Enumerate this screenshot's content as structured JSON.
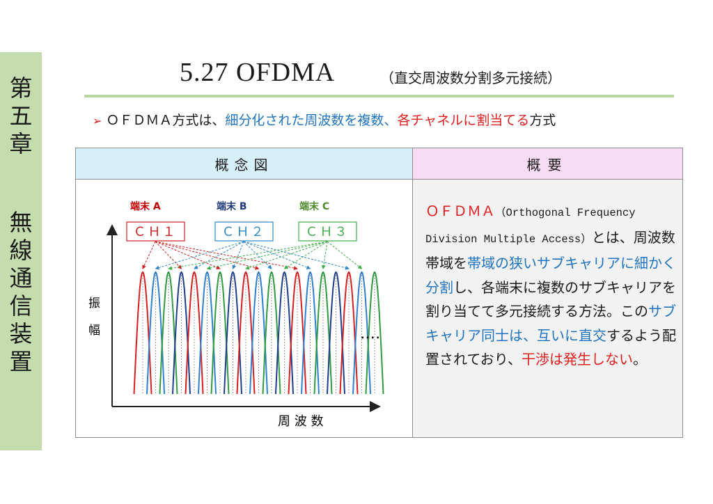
{
  "sidebar": {
    "chapter": [
      "第",
      "五",
      "章"
    ],
    "subject": [
      "無",
      "線",
      "通",
      "信",
      "装",
      "置"
    ]
  },
  "title": {
    "main": "5.27  OFDMA",
    "sub": "（直交周波数分割多元接続）"
  },
  "bullet": {
    "marker": "➢",
    "part1": "ＯＦＤＭＡ方式は、",
    "part2": "細分化された周波数を複数、",
    "part3": "各チャネルに割当てる",
    "part4": "方式"
  },
  "table": {
    "left_header": "概念図",
    "right_header": "概要"
  },
  "diagram": {
    "terminals": [
      {
        "label": "端末 A",
        "color": "#c00000"
      },
      {
        "label": "端末 B",
        "color": "#1f3b7a"
      },
      {
        "label": "端末 C",
        "color": "#4e8a2e"
      }
    ],
    "channels": [
      {
        "label": "ＣＨ１",
        "color": "#d02020"
      },
      {
        "label": "ＣＨ２",
        "color": "#2f86c8"
      },
      {
        "label": "ＣＨ３",
        "color": "#3fae4a"
      }
    ],
    "ylabel": [
      "振",
      "幅"
    ],
    "xlabel": "周 波 数",
    "ellipsis": "‥‥",
    "subcarrier_colors": [
      "#d42020",
      "#2f7fd0",
      "#2f9a40",
      "#1d3d8c",
      "#d42020",
      "#2f7fd0",
      "#2f9a40",
      "#1d3d8c",
      "#d42020",
      "#2f7fd0",
      "#2f9a40",
      "#1d3d8c",
      "#d42020",
      "#2f7fd0",
      "#2f9a40",
      "#1d3d8c",
      "#d42020",
      "#2f7fd0",
      "#2f9a40"
    ]
  },
  "description": {
    "p1_red": "ＯＦＤＭＡ",
    "p1_en": "（Orthogonal Frequency Division Multiple Access）",
    "p2": "とは、周波数帯域を",
    "p3_blue": "帯域の狭いサブキャリアに細かく分割",
    "p4": "し、各端末に複数のサブキャリアを割り当てて多元接続する方法。この",
    "p5_blue": "サブキャリア同士は、互いに直交",
    "p6": "するよう配置されており、",
    "p7_red": "干渉は発生しない",
    "p8": "。"
  }
}
